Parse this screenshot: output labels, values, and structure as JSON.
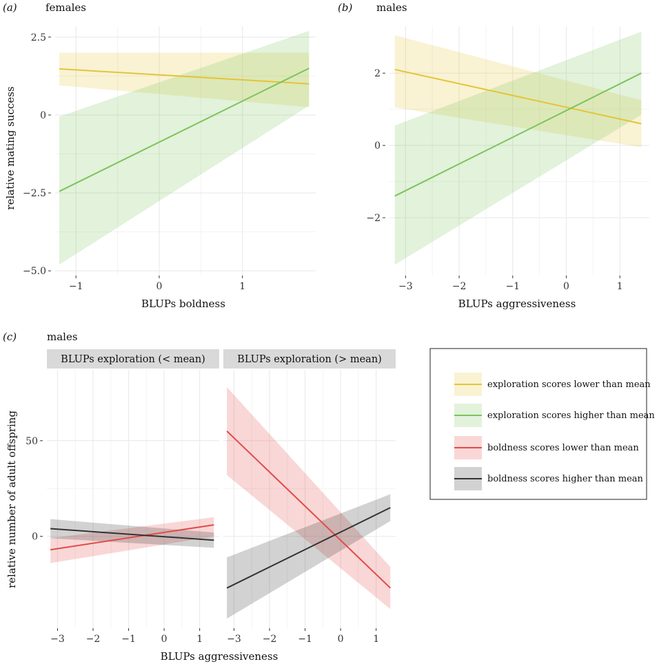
{
  "colors": {
    "yellow": "#e3c535",
    "green": "#7bc35b",
    "red": "#e24b47",
    "black": "#333333",
    "grid": "#ebebeb",
    "strip": "#d9d9d9"
  },
  "chart_data": [
    {
      "id": "a",
      "type": "line",
      "panel_label": "(a)",
      "subtitle": "females",
      "xlabel": "BLUPs boldness",
      "ylabel": "relative mating success",
      "xlim": [
        -1.25,
        1.88
      ],
      "ylim": [
        -5.15,
        2.85
      ],
      "xticks": [
        {
          "v": -1,
          "label": "−1"
        },
        {
          "v": 0,
          "label": "0"
        },
        {
          "v": 1,
          "label": "1"
        }
      ],
      "yticks": [
        {
          "v": 2.5,
          "label": "2.5"
        },
        {
          "v": 0,
          "label": "0"
        },
        {
          "v": -2.5,
          "label": "−2.5"
        },
        {
          "v": -5,
          "label": "−5.0"
        }
      ],
      "series": [
        {
          "name": "exploration scores lower than mean",
          "color": "yellow",
          "x": [
            -1.2,
            1.8
          ],
          "y": [
            1.48,
            1.0
          ],
          "lower": [
            0.95,
            0.25
          ],
          "upper": [
            2.0,
            2.0
          ]
        },
        {
          "name": "exploration scores higher than mean",
          "color": "green",
          "x": [
            -1.2,
            1.8
          ],
          "y": [
            -2.45,
            1.5
          ],
          "lower": [
            -4.8,
            0.3
          ],
          "upper": [
            -0.05,
            2.7
          ]
        }
      ]
    },
    {
      "id": "b",
      "type": "line",
      "panel_label": "(b)",
      "subtitle": "males",
      "xlabel": "BLUPs aggressiveness",
      "ylabel": "",
      "xlim": [
        -3.3,
        1.55
      ],
      "ylim": [
        -3.6,
        3.3
      ],
      "xticks": [
        {
          "v": -3,
          "label": "−3"
        },
        {
          "v": -2,
          "label": "−2"
        },
        {
          "v": -1,
          "label": "−1"
        },
        {
          "v": 0,
          "label": "0"
        },
        {
          "v": 1,
          "label": "1"
        }
      ],
      "yticks": [
        {
          "v": 2,
          "label": "2"
        },
        {
          "v": 0,
          "label": "0"
        },
        {
          "v": -2,
          "label": "−2"
        }
      ],
      "series": [
        {
          "name": "exploration scores lower than mean",
          "color": "yellow",
          "x": [
            -3.2,
            1.4
          ],
          "y": [
            2.1,
            0.6
          ],
          "lower": [
            1.05,
            -0.05
          ],
          "upper": [
            3.05,
            1.25
          ]
        },
        {
          "name": "exploration scores higher than mean",
          "color": "green",
          "x": [
            -3.2,
            1.4
          ],
          "y": [
            -1.4,
            2.0
          ],
          "lower": [
            -3.3,
            0.85
          ],
          "upper": [
            0.55,
            3.15
          ]
        }
      ]
    },
    {
      "id": "c",
      "type": "line",
      "panel_label": "(c)",
      "subtitle": "males",
      "xlabel": "BLUPs aggressiveness",
      "ylabel": "relative number of adult offspring",
      "xlim": [
        -3.3,
        1.55
      ],
      "ylim": [
        -48,
        87
      ],
      "xticks": [
        {
          "v": -3,
          "label": "−3"
        },
        {
          "v": -2,
          "label": "−2"
        },
        {
          "v": -1,
          "label": "−1"
        },
        {
          "v": 0,
          "label": "0"
        },
        {
          "v": 1,
          "label": "1"
        }
      ],
      "yticks": [
        {
          "v": 50,
          "label": "50"
        },
        {
          "v": 0,
          "label": "0"
        }
      ],
      "facets": [
        {
          "strip": "BLUPs exploration (< mean)",
          "series": [
            {
              "name": "boldness scores lower than mean",
              "color": "red",
              "x": [
                -3.2,
                1.4
              ],
              "y": [
                -7,
                6
              ],
              "lower": [
                -14,
                0
              ],
              "upper": [
                -1,
                10
              ]
            },
            {
              "name": "boldness scores higher than mean",
              "color": "black",
              "x": [
                -3.2,
                1.4
              ],
              "y": [
                4,
                -2
              ],
              "lower": [
                -1,
                -6
              ],
              "upper": [
                9,
                2
              ]
            }
          ]
        },
        {
          "strip": "BLUPs exploration (> mean)",
          "series": [
            {
              "name": "boldness scores lower than mean",
              "color": "red",
              "x": [
                -3.2,
                1.4
              ],
              "y": [
                55,
                -27
              ],
              "lower": [
                32,
                -38
              ],
              "upper": [
                78,
                -16
              ]
            },
            {
              "name": "boldness scores higher than mean",
              "color": "black",
              "x": [
                -3.2,
                1.4
              ],
              "y": [
                -27,
                15
              ],
              "lower": [
                -43,
                8
              ],
              "upper": [
                -11,
                22
              ]
            }
          ]
        }
      ]
    }
  ],
  "legend": {
    "items": [
      {
        "label": "exploration scores lower than mean",
        "color": "yellow"
      },
      {
        "label": "exploration scores higher than mean",
        "color": "green"
      },
      {
        "label": "boldness scores lower than mean",
        "color": "red"
      },
      {
        "label": "boldness scores higher than mean",
        "color": "black"
      }
    ]
  }
}
